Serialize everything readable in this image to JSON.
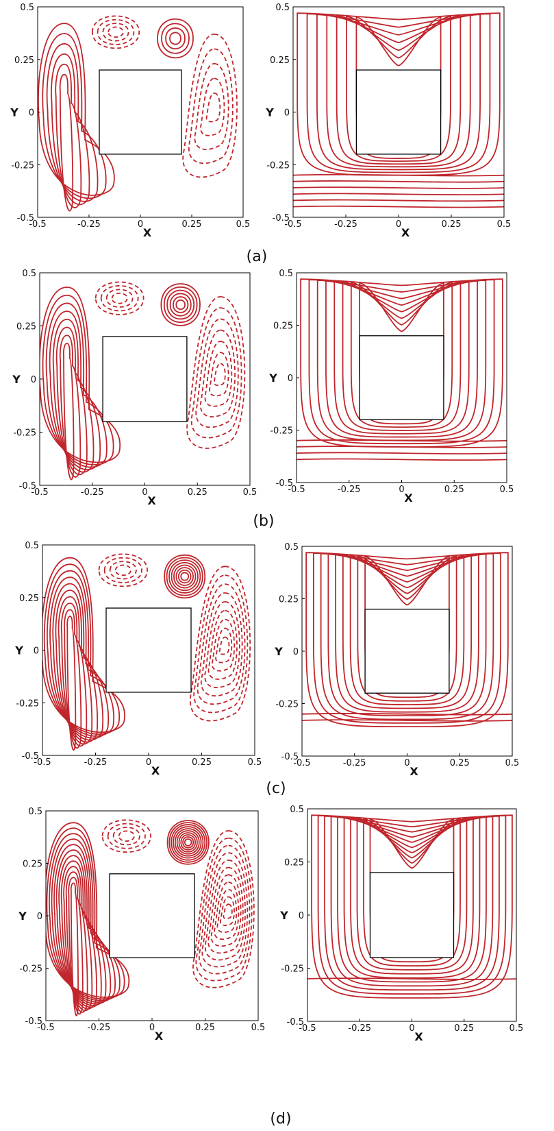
{
  "panels": [
    {
      "caption": "(a)"
    },
    {
      "caption": "(b)"
    },
    {
      "caption": "(c)"
    },
    {
      "caption": "(d)"
    }
  ],
  "axes": {
    "x_label": "X",
    "y_label": "Y",
    "x_ticks": [
      "-0.5",
      "-0.25",
      "0",
      "0.25",
      "0.5"
    ],
    "y_ticks": [
      "0.5",
      "0.25",
      "0",
      "-0.25",
      "-0.5"
    ]
  },
  "colors": {
    "contour": "#c0262c",
    "frame": "#000000",
    "text": "#111111"
  }
}
